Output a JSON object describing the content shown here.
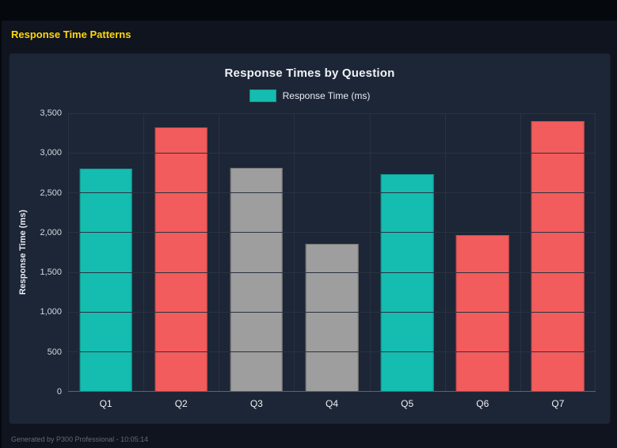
{
  "page": {
    "header_title": "Response Time Patterns",
    "footer": "Generated by P300 Professional - 10:05:14"
  },
  "legend": {
    "label": "Response Time (ms)"
  },
  "chart_data": {
    "type": "bar",
    "title": "Response Times by Question",
    "categories": [
      "Q1",
      "Q2",
      "Q3",
      "Q4",
      "Q5",
      "Q6",
      "Q7"
    ],
    "values": [
      2800,
      3320,
      2810,
      1850,
      2730,
      1960,
      3400
    ],
    "bar_colors": [
      "#15bdb0",
      "#f25c5c",
      "#9e9e9e",
      "#9e9e9e",
      "#15bdb0",
      "#f25c5c",
      "#f25c5c"
    ],
    "bar_border_colors": [
      "#0e968c",
      "#c94b4b",
      "#6f6f6f",
      "#6f6f6f",
      "#0e968c",
      "#c94b4b",
      "#c94b4b"
    ],
    "legend_entries": [
      "Response Time (ms)"
    ],
    "legend_position": "top",
    "xlabel": "",
    "ylabel": "Response Time (ms)",
    "ylim": [
      0,
      3500
    ],
    "ytick_step": 500,
    "yticks": [
      "0",
      "500",
      "1,000",
      "1,500",
      "2,000",
      "2,500",
      "3,000",
      "3,500"
    ],
    "grid": true,
    "colors": {
      "teal": "#15bdb0",
      "red": "#f25c5c",
      "gray": "#9e9e9e",
      "header_accent": "#ffd60a",
      "panel_background": "#1d2636",
      "page_background": "#0f141e"
    }
  }
}
